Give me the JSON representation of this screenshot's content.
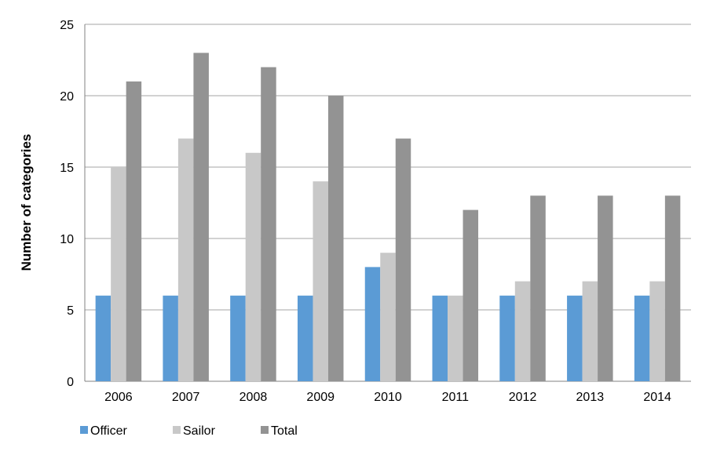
{
  "chart_data": {
    "type": "bar",
    "title": "",
    "xlabel": "",
    "ylabel": "Number of categories",
    "ylim": [
      0,
      25
    ],
    "yticks": [
      0,
      5,
      10,
      15,
      20,
      25
    ],
    "grid": true,
    "legend_position": "bottom-left",
    "categories": [
      "2006",
      "2007",
      "2008",
      "2009",
      "2010",
      "2011",
      "2012",
      "2013",
      "2014"
    ],
    "series": [
      {
        "name": "Officer",
        "color": "#5b9bd5",
        "values": [
          6,
          6,
          6,
          6,
          8,
          6,
          6,
          6,
          6
        ]
      },
      {
        "name": "Sailor",
        "color": "#c8c8c8",
        "values": [
          15,
          17,
          16,
          14,
          9,
          6,
          7,
          7,
          7
        ]
      },
      {
        "name": "Total",
        "color": "#939393",
        "values": [
          21,
          23,
          22,
          20,
          17,
          12,
          13,
          13,
          13
        ]
      }
    ]
  }
}
